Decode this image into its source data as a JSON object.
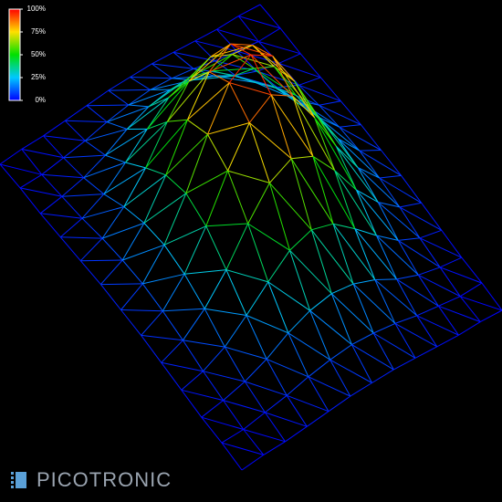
{
  "chart_data": {
    "type": "surface",
    "zlim": [
      0,
      100
    ],
    "zticks": [
      {
        "value": 100,
        "label": "100%"
      },
      {
        "value": 75,
        "label": "75%"
      },
      {
        "value": 50,
        "label": "50%"
      },
      {
        "value": 25,
        "label": "25%"
      },
      {
        "value": 0,
        "label": "0%"
      }
    ],
    "colors": [
      "#0000ff",
      "#00c8ff",
      "#00e000",
      "#ffe000",
      "#ff0000"
    ],
    "z": [
      [
        0,
        1,
        1,
        2,
        3,
        4,
        4,
        4,
        3,
        2,
        1,
        1,
        0
      ],
      [
        1,
        1,
        3,
        5,
        8,
        10,
        11,
        10,
        8,
        5,
        3,
        1,
        1
      ],
      [
        1,
        3,
        6,
        11,
        18,
        23,
        25,
        23,
        18,
        11,
        6,
        3,
        1
      ],
      [
        2,
        5,
        11,
        21,
        32,
        42,
        46,
        42,
        32,
        21,
        11,
        5,
        2
      ],
      [
        3,
        8,
        18,
        32,
        50,
        65,
        71,
        65,
        50,
        32,
        18,
        8,
        3
      ],
      [
        4,
        10,
        23,
        42,
        65,
        84,
        92,
        84,
        65,
        42,
        23,
        10,
        4
      ],
      [
        4,
        11,
        25,
        46,
        71,
        92,
        100,
        92,
        71,
        46,
        25,
        11,
        4
      ],
      [
        4,
        10,
        23,
        42,
        65,
        84,
        92,
        84,
        65,
        42,
        23,
        10,
        4
      ],
      [
        3,
        8,
        18,
        32,
        50,
        65,
        71,
        65,
        50,
        32,
        18,
        8,
        3
      ],
      [
        2,
        5,
        11,
        21,
        32,
        42,
        46,
        42,
        32,
        21,
        11,
        5,
        2
      ],
      [
        1,
        3,
        6,
        11,
        18,
        23,
        25,
        23,
        18,
        11,
        6,
        3,
        1
      ],
      [
        1,
        1,
        3,
        5,
        8,
        10,
        11,
        10,
        8,
        5,
        3,
        1,
        1
      ],
      [
        0,
        1,
        1,
        2,
        3,
        4,
        4,
        4,
        3,
        2,
        1,
        1,
        0
      ]
    ]
  },
  "logo": "PICOTRONIC"
}
